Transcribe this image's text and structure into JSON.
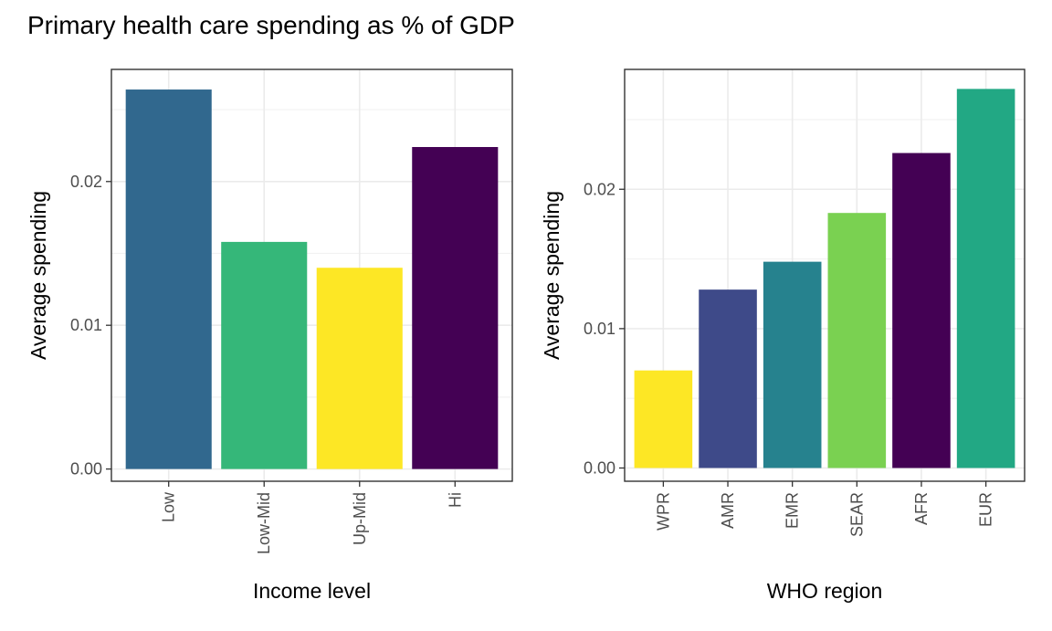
{
  "title": "Primary health care spending as % of GDP",
  "chart_data": [
    {
      "type": "bar",
      "categories": [
        "Low",
        "Low-Mid",
        "Up-Mid",
        "Hi"
      ],
      "values": [
        0.0264,
        0.0158,
        0.014,
        0.0224
      ],
      "colors": [
        "#31688E",
        "#35B779",
        "#FDE725",
        "#440154"
      ],
      "xlabel": "Income level",
      "ylabel": "Average spending",
      "yticks": [
        0.0,
        0.01,
        0.02
      ],
      "ytick_labels": [
        "0.00",
        "0.01",
        "0.02"
      ],
      "ylim": [
        -0.00085,
        0.0278
      ],
      "grid": true
    },
    {
      "type": "bar",
      "categories": [
        "WPR",
        "AMR",
        "EMR",
        "SEAR",
        "AFR",
        "EUR"
      ],
      "values": [
        0.007,
        0.0128,
        0.0148,
        0.0183,
        0.0226,
        0.0272
      ],
      "colors": [
        "#FDE725",
        "#3E4A89",
        "#26828E",
        "#7AD151",
        "#440154",
        "#22A884"
      ],
      "xlabel": "WHO region",
      "ylabel": "Average spending",
      "yticks": [
        0.0,
        0.01,
        0.02
      ],
      "ytick_labels": [
        "0.00",
        "0.01",
        "0.02"
      ],
      "ylim": [
        -0.00095,
        0.0286
      ],
      "grid": true
    }
  ]
}
